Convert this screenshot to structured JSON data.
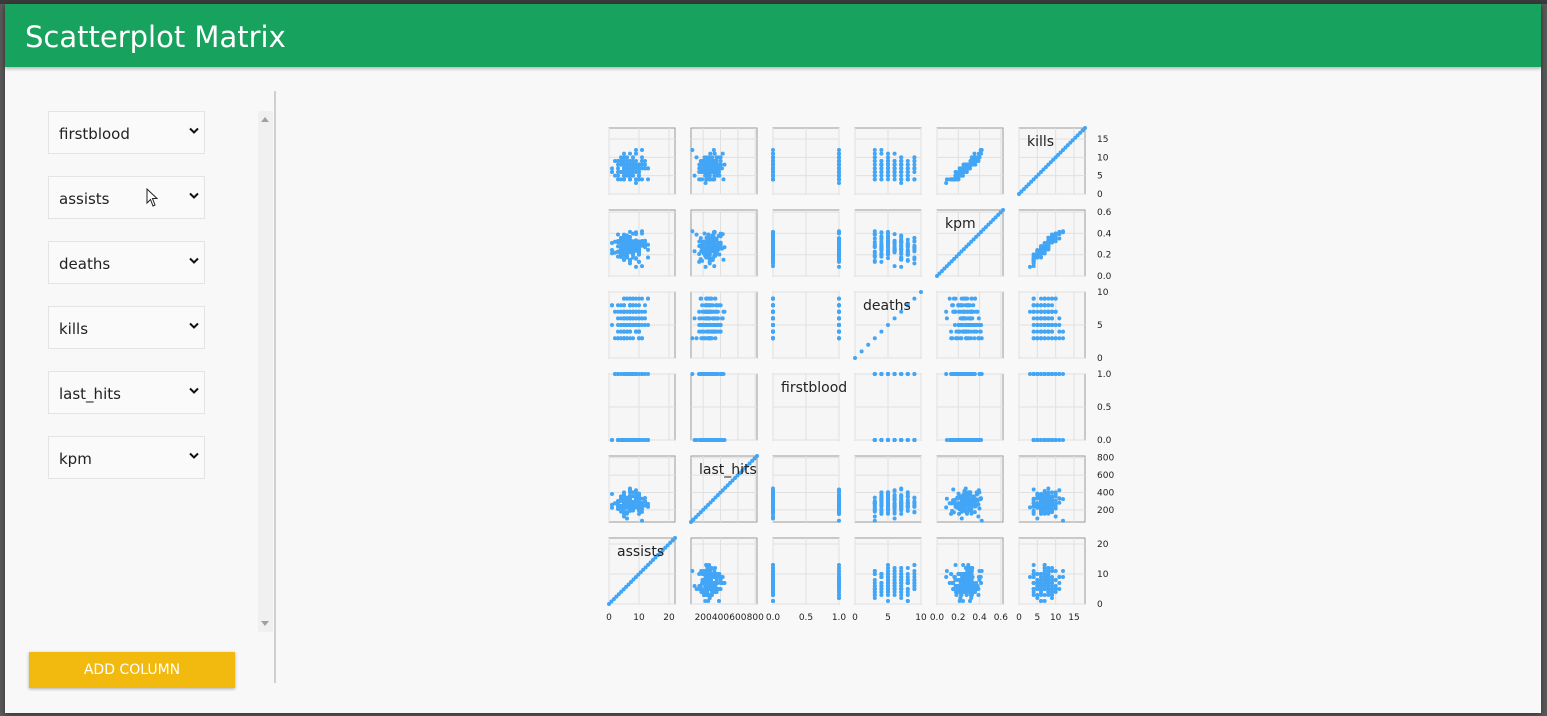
{
  "title": "Scatterplot Matrix",
  "selects": [
    {
      "value": "firstblood"
    },
    {
      "value": "assists"
    },
    {
      "value": "deaths"
    },
    {
      "value": "kills"
    },
    {
      "value": "last_hits"
    },
    {
      "value": "kpm"
    }
  ],
  "add_column_label": "ADD COLUMN",
  "colors": {
    "header": "#17a25d",
    "button": "#f2b90f",
    "points": "#42a5f5"
  },
  "chart_data": {
    "type": "scatter",
    "matrix": true,
    "columns": [
      "assists",
      "last_hits",
      "firstblood",
      "deaths",
      "kpm",
      "kills"
    ],
    "row_order_top_to_bottom": [
      "kills",
      "kpm",
      "deaths",
      "firstblood",
      "last_hits",
      "assists"
    ],
    "diagonal_labels": [
      "kills",
      "kpm",
      "deaths",
      "firstblood",
      "last_hits",
      "assists"
    ],
    "x_ticks": {
      "assists": [
        "0",
        "10",
        "20"
      ],
      "last_hits": [
        "200",
        "400",
        "600",
        "800"
      ],
      "firstblood": [
        "0.0",
        "0.5",
        "1.0"
      ],
      "deaths": [
        "0",
        "5",
        "10"
      ],
      "kpm": [
        "0.0",
        "0.2",
        "0.4",
        "0.6"
      ],
      "kills": [
        "0",
        "5",
        "10",
        "15"
      ]
    },
    "y_ticks": {
      "kills": [
        "0",
        "5",
        "10",
        "15"
      ],
      "kpm": [
        "0.0",
        "0.2",
        "0.4",
        "0.6"
      ],
      "deaths": [
        "0",
        "5",
        "10"
      ],
      "firstblood": [
        "0.0",
        "0.5",
        "1.0"
      ],
      "last_hits": [
        "200",
        "400",
        "600",
        "800"
      ],
      "assists": [
        "0",
        "10",
        "20"
      ]
    },
    "ranges": {
      "assists": [
        0,
        22
      ],
      "last_hits": [
        60,
        820
      ],
      "firstblood": [
        0,
        1
      ],
      "deaths": [
        0,
        10
      ],
      "kpm": [
        0,
        0.62
      ],
      "kills": [
        0,
        18
      ]
    },
    "grid": true
  }
}
